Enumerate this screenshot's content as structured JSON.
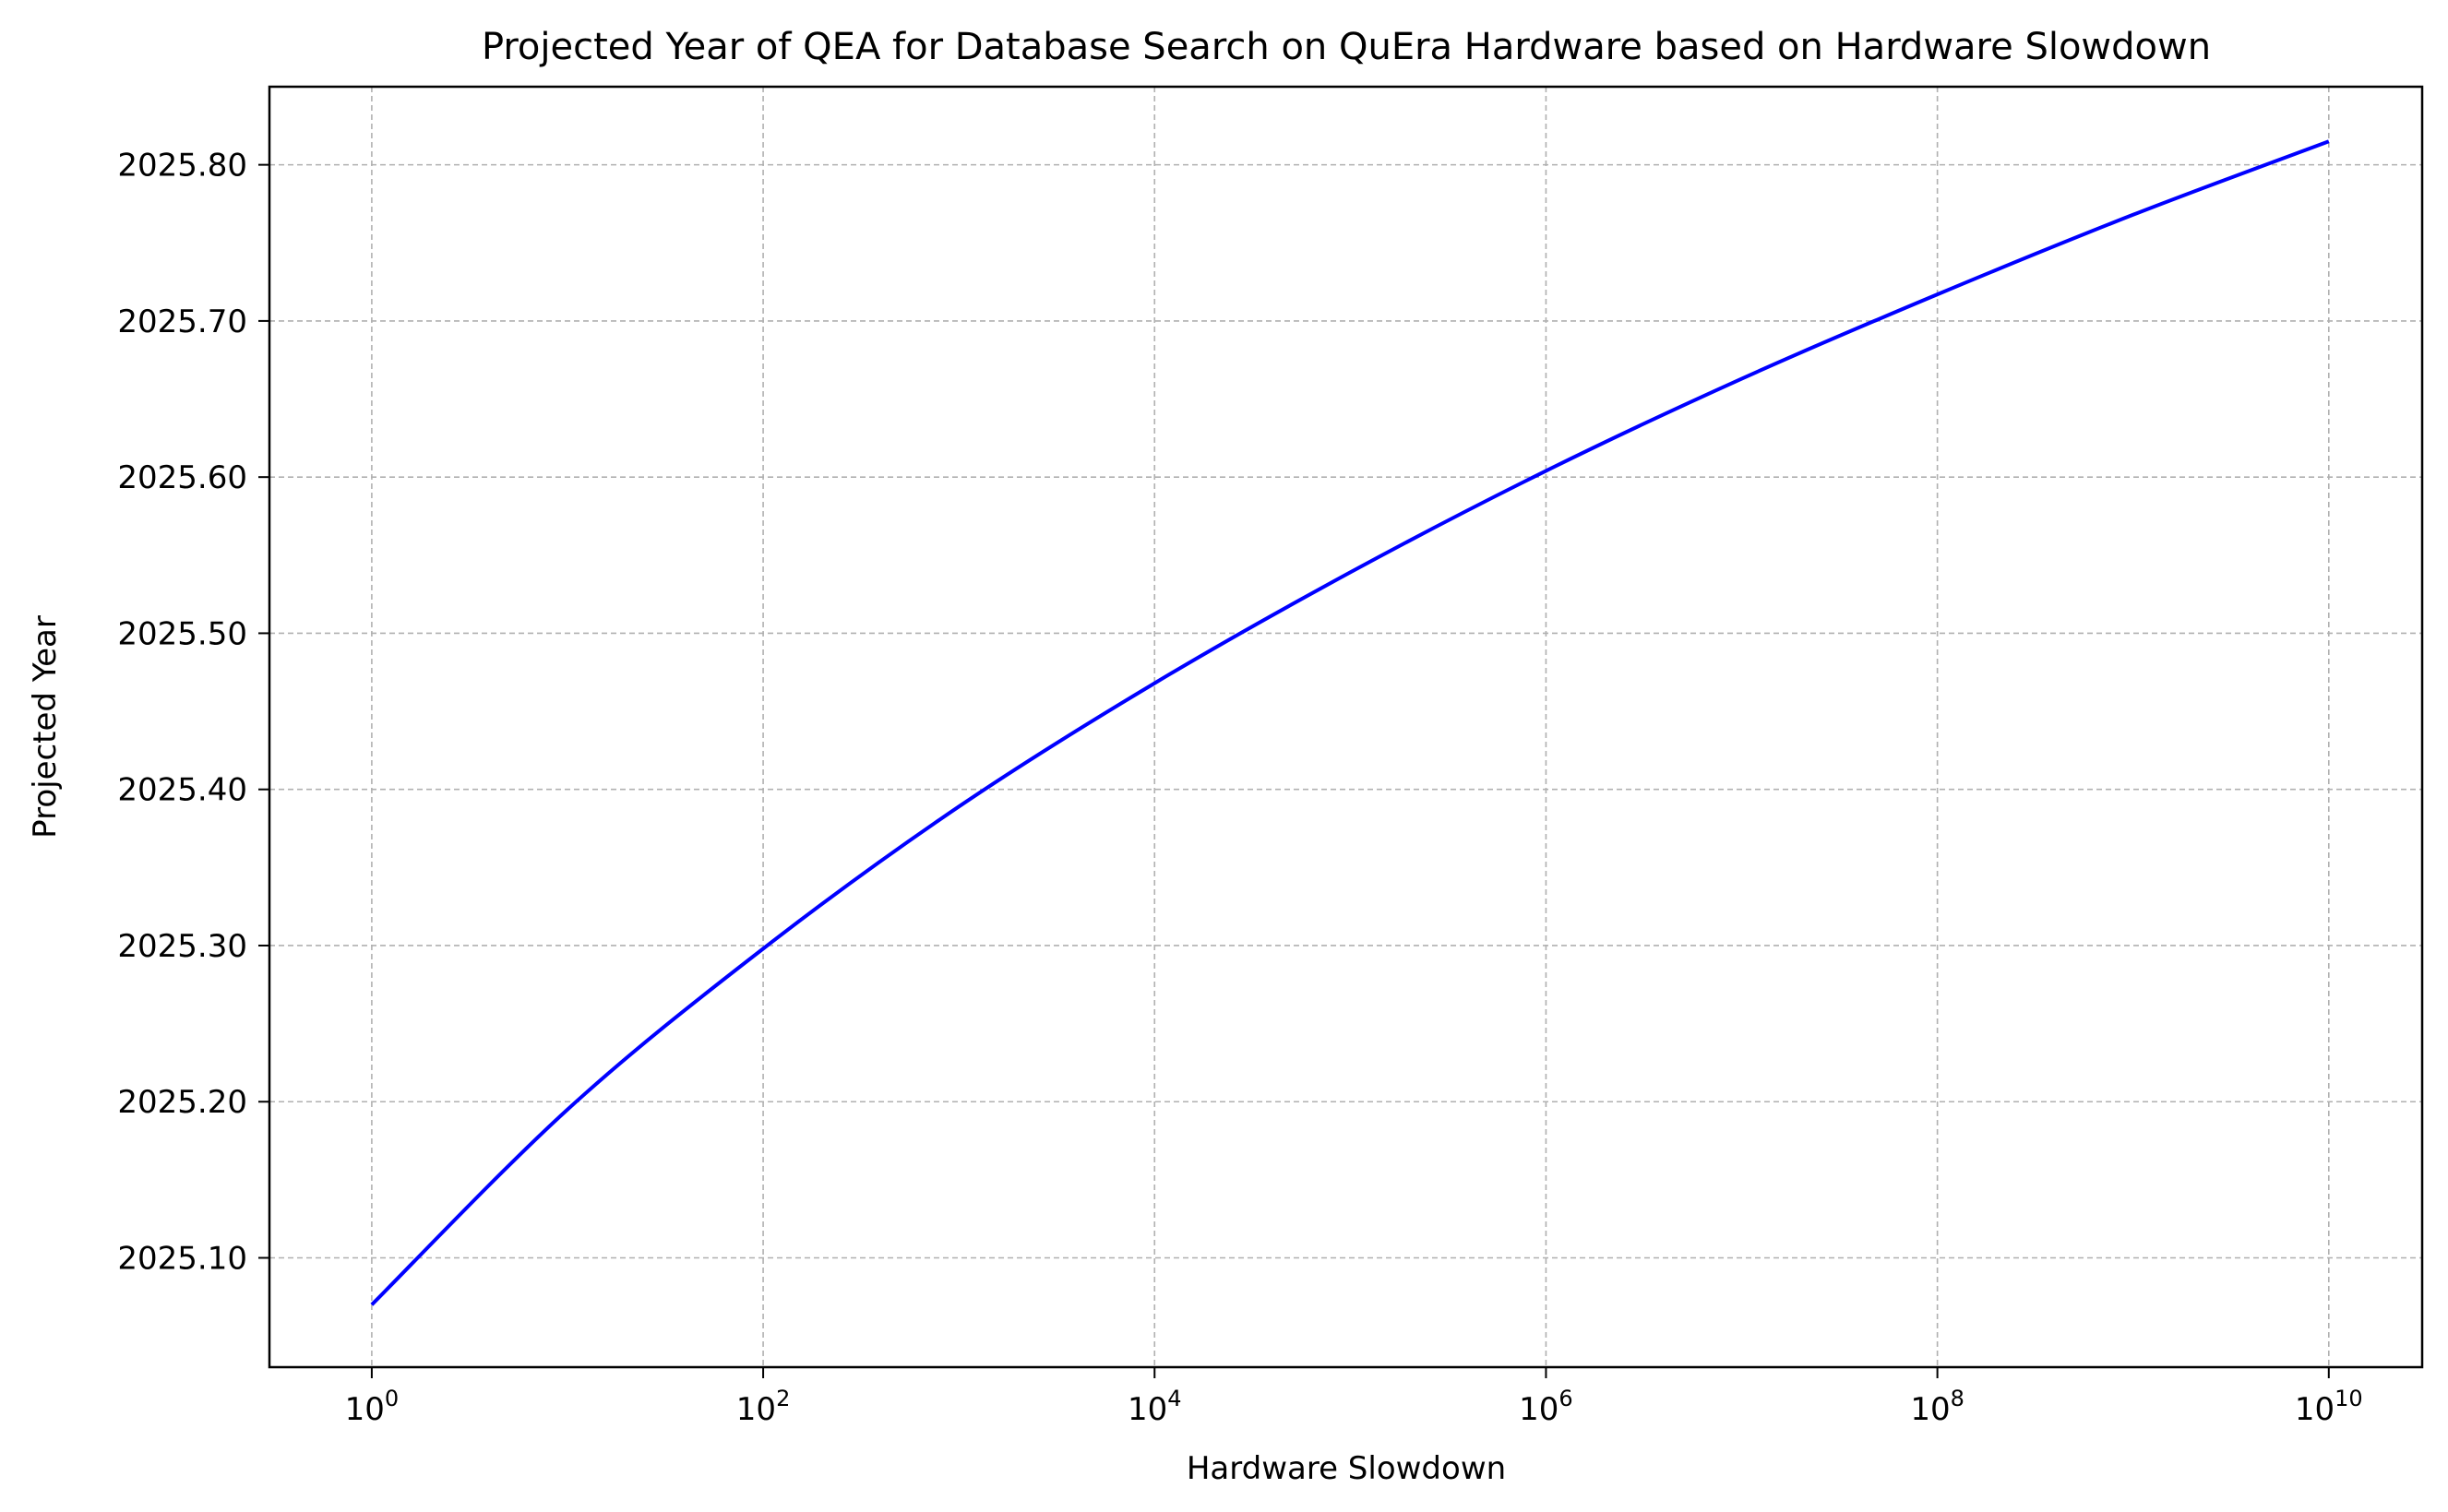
{
  "chart_data": {
    "type": "line",
    "title": "Projected Year of QEA for Database Search on QuEra Hardware based on Hardware Slowdown",
    "xlabel": "Hardware Slowdown",
    "ylabel": "Projected Year",
    "xscale": "log",
    "xlim": [
      0.3,
      30000000000
    ],
    "ylim": [
      2025.03,
      2025.85
    ],
    "grid": true,
    "grid_style": "dashed",
    "x_ticks": [
      {
        "value": 1,
        "base": "10",
        "exp": "0"
      },
      {
        "value": 100,
        "base": "10",
        "exp": "2"
      },
      {
        "value": 10000,
        "base": "10",
        "exp": "4"
      },
      {
        "value": 1000000,
        "base": "10",
        "exp": "6"
      },
      {
        "value": 100000000,
        "base": "10",
        "exp": "8"
      },
      {
        "value": 10000000000,
        "base": "10",
        "exp": "10"
      }
    ],
    "y_ticks": [
      {
        "value": 2025.1,
        "label": "2025.10"
      },
      {
        "value": 2025.2,
        "label": "2025.20"
      },
      {
        "value": 2025.3,
        "label": "2025.30"
      },
      {
        "value": 2025.4,
        "label": "2025.40"
      },
      {
        "value": 2025.5,
        "label": "2025.50"
      },
      {
        "value": 2025.6,
        "label": "2025.60"
      },
      {
        "value": 2025.7,
        "label": "2025.70"
      },
      {
        "value": 2025.8,
        "label": "2025.80"
      }
    ],
    "series": [
      {
        "color": "#0000ff",
        "x": [
          1,
          10,
          100,
          1000,
          10000,
          100000,
          1000000,
          10000000,
          100000000,
          1000000000,
          10000000000
        ],
        "y": [
          2025.07,
          2025.195,
          2025.298,
          2025.389,
          2025.468,
          2025.539,
          2025.604,
          2025.663,
          2025.717,
          2025.768,
          2025.815
        ]
      }
    ]
  }
}
